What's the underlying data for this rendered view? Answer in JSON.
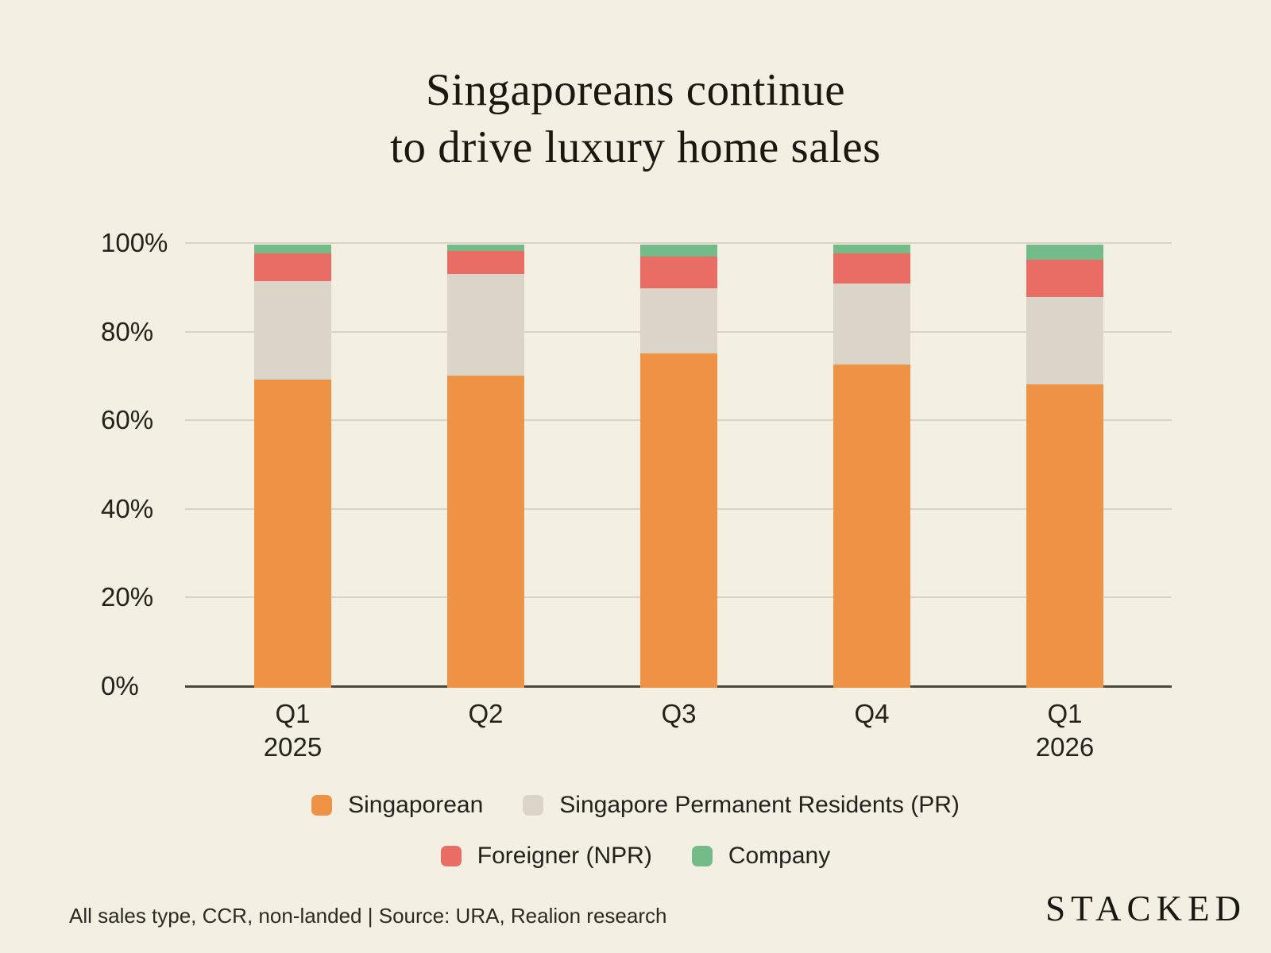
{
  "title": {
    "line1": "Singaporeans continue",
    "line2": "to drive luxury home sales"
  },
  "chart_data": {
    "type": "bar",
    "stacked": true,
    "normalized_to_100_percent": true,
    "title": "Singaporeans continue to drive luxury home sales",
    "categories": [
      "Q1 2025",
      "Q2 2025",
      "Q3 2025",
      "Q4 2025",
      "Q1 2026"
    ],
    "x_tick_labels": [
      {
        "line1": "Q1",
        "line2": "2025"
      },
      {
        "line1": "Q2",
        "line2": ""
      },
      {
        "line1": "Q3",
        "line2": ""
      },
      {
        "line1": "Q4",
        "line2": ""
      },
      {
        "line1": "Q1",
        "line2": "2026"
      }
    ],
    "series": [
      {
        "name": "Singaporean",
        "color": "#ee9346",
        "values": [
          69.5,
          70.4,
          75.5,
          73.0,
          68.5
        ]
      },
      {
        "name": "Singapore Permanent Residents (PR)",
        "color": "#dbd5c9",
        "values": [
          22.3,
          23.0,
          14.6,
          18.2,
          19.6
        ]
      },
      {
        "name": "Foreigner (NPR)",
        "color": "#e96c65",
        "values": [
          6.2,
          5.1,
          7.2,
          6.8,
          8.5
        ]
      },
      {
        "name": "Company",
        "color": "#74bc87",
        "values": [
          2.0,
          1.5,
          2.7,
          2.0,
          3.4
        ]
      }
    ],
    "y_ticks": [
      {
        "value": 0,
        "label": "0%"
      },
      {
        "value": 20,
        "label": "20%"
      },
      {
        "value": 40,
        "label": "40%"
      },
      {
        "value": 60,
        "label": "60%"
      },
      {
        "value": 80,
        "label": "80%"
      },
      {
        "value": 100,
        "label": "100%"
      }
    ],
    "ylim": [
      0,
      100
    ],
    "grid": true,
    "legend_position": "bottom"
  },
  "legend": {
    "row1_items": [
      0,
      1
    ],
    "row2_items": [
      2,
      3
    ]
  },
  "footer": {
    "note": "All sales type, CCR, non-landed | Source: URA, Realion research"
  },
  "brand": {
    "name": "STACKED"
  },
  "colors": {
    "background": "#f4efe3",
    "gridline": "#d9d3c5",
    "axis_line": "#4b473d",
    "text": "#23221c"
  }
}
